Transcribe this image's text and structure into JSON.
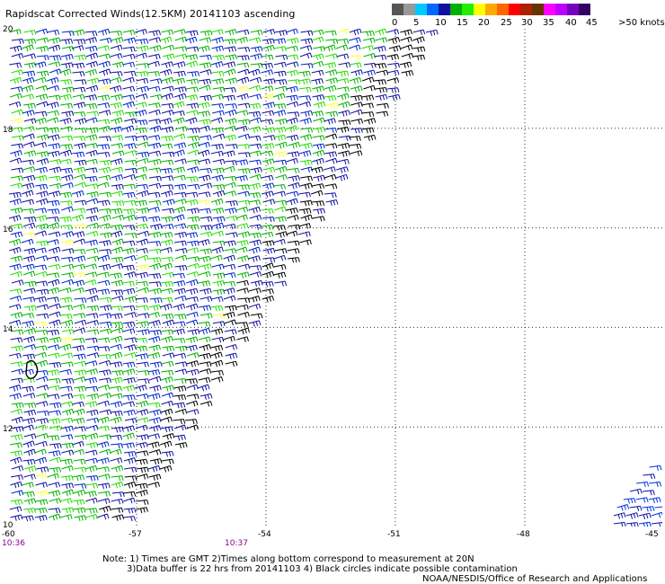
{
  "title": "Rapidscat Corrected Winds(12.5KM) 20141103 ascending",
  "legend": {
    "colors": [
      "#555555",
      "#999999",
      "#00c8ff",
      "#0066ff",
      "#1010a0",
      "#00b000",
      "#22ee00",
      "#ffff00",
      "#ffaa00",
      "#ff6600",
      "#ff0000",
      "#aa2200",
      "#663300",
      "#ff00ff",
      "#bb00ff",
      "#7700bb",
      "#330066"
    ],
    "labels": [
      "0",
      "5",
      "10",
      "15",
      "20",
      "25",
      "30",
      "35",
      "40",
      "45",
      ">50 knots"
    ]
  },
  "axes": {
    "lon_labels": [
      "-60",
      "-57",
      "-54",
      "-51",
      "-48",
      "-45"
    ],
    "lat_labels": [
      "20",
      "18",
      "16",
      "14",
      "12",
      "10"
    ],
    "lon_range": [
      -60,
      -45
    ],
    "lat_range": [
      10,
      20
    ]
  },
  "times": [
    "10:36",
    "10:37"
  ],
  "notes": [
    "Note: 1) Times are GMT 2)Times along bottom correspond to measurement at 20N",
    "3)Data buffer is 22 hrs from 20141103 4) Black circles indicate possible contamination",
    "NOAA/NESDIS/Office of Research and Applications"
  ]
}
